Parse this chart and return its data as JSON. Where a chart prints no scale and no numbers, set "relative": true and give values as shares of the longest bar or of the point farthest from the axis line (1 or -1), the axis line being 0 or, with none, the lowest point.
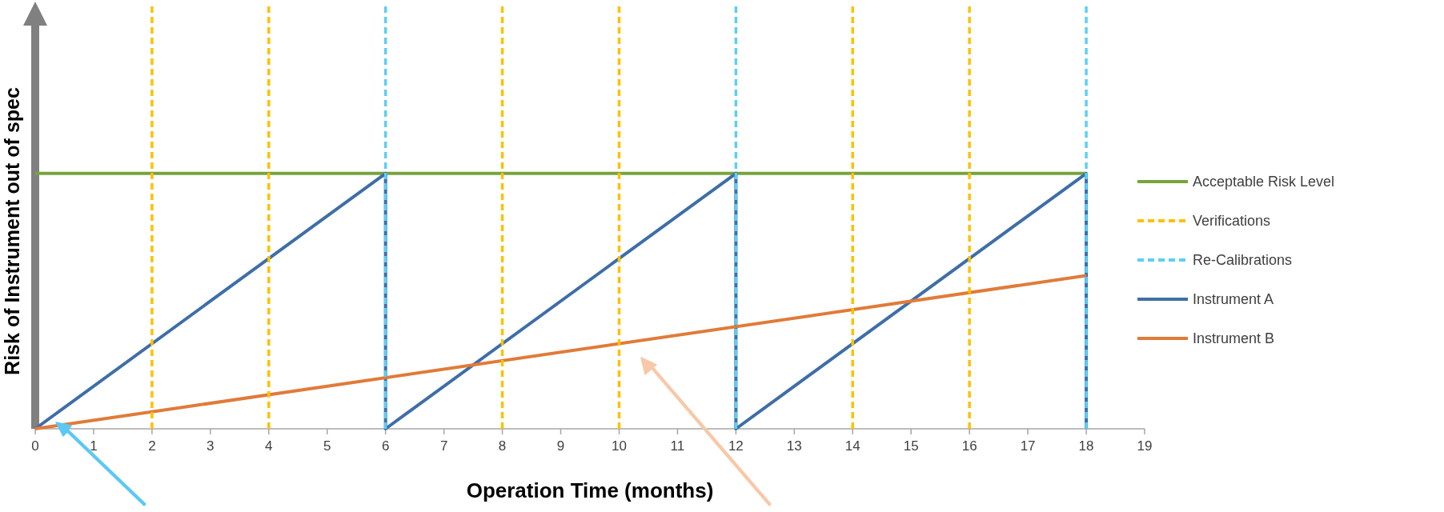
{
  "chart_data": {
    "type": "line",
    "relative": true,
    "xlabel": "Operation Time (months)",
    "ylabel": "Risk of Instrument out of spec",
    "xlim": [
      0,
      19
    ],
    "xticks": [
      0,
      1,
      2,
      3,
      4,
      5,
      6,
      7,
      8,
      9,
      10,
      11,
      12,
      13,
      14,
      15,
      16,
      17,
      18,
      19
    ],
    "legend": "right",
    "grid": false,
    "marker": "none",
    "line_style": "solid",
    "series": [
      {
        "name": "Acceptable Risk Level",
        "color": "#77a33c",
        "x": [
          0,
          18
        ],
        "values": [
          0.6,
          0.6
        ]
      },
      {
        "name": "Verifications",
        "color": "#ffc000",
        "line_style": "dashed",
        "x": [
          2,
          2,
          null,
          4,
          4,
          null,
          8,
          8,
          null,
          10,
          10,
          null,
          14,
          14,
          null,
          16,
          16
        ],
        "values": [
          0,
          1,
          null,
          0,
          1,
          null,
          0,
          1,
          null,
          0,
          1,
          null,
          0,
          1,
          null,
          0,
          1
        ]
      },
      {
        "name": "Re-Calibrations",
        "color": "#5bcff5",
        "line_style": "dashed",
        "x": [
          6,
          6,
          null,
          12,
          12,
          null,
          18,
          18
        ],
        "values": [
          0,
          1,
          null,
          0,
          1,
          null,
          0,
          1
        ]
      },
      {
        "name": "Instrument A",
        "color": "#3e6ea8",
        "x": [
          0,
          6,
          6,
          12,
          12,
          18,
          18
        ],
        "values": [
          0,
          0.6,
          0,
          0.6,
          0,
          0.6,
          0
        ]
      },
      {
        "name": "Instrument B",
        "color": "#e07b39",
        "x": [
          0,
          18
        ],
        "values": [
          0,
          0.36
        ]
      }
    ]
  }
}
